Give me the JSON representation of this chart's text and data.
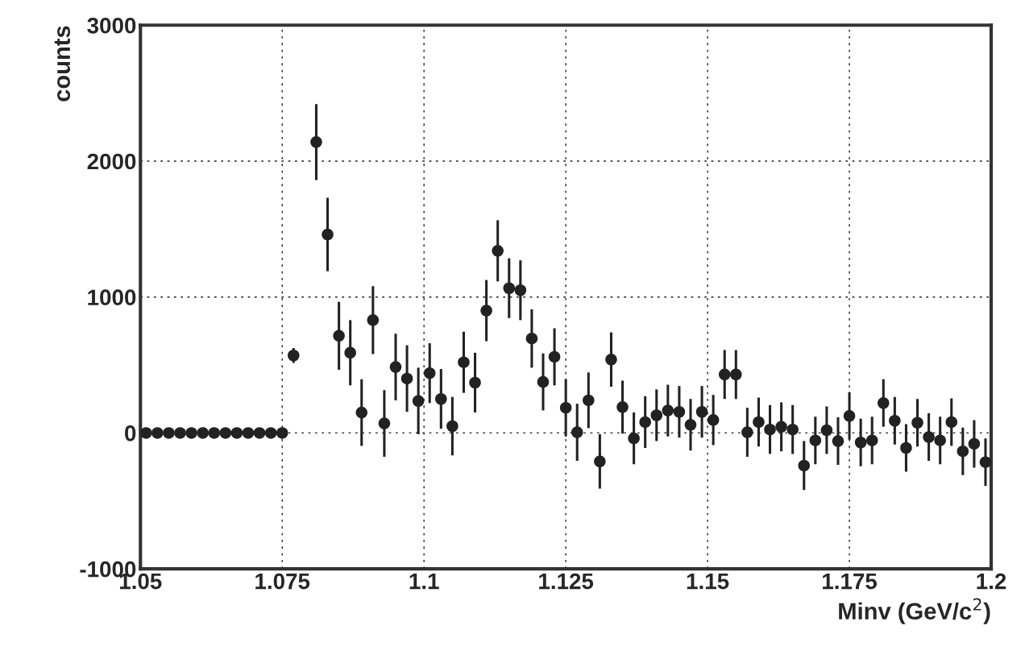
{
  "chart_data": {
    "type": "scatter",
    "xlabel": "Minv (GeV/c$^{2}$)",
    "ylabel": "counts",
    "x": [
      1.051,
      1.053,
      1.055,
      1.057,
      1.059,
      1.061,
      1.063,
      1.065,
      1.067,
      1.069,
      1.071,
      1.073,
      1.075,
      1.077,
      1.081,
      1.083,
      1.085,
      1.087,
      1.089,
      1.091,
      1.093,
      1.095,
      1.097,
      1.099,
      1.101,
      1.103,
      1.105,
      1.107,
      1.109,
      1.111,
      1.113,
      1.115,
      1.117,
      1.119,
      1.121,
      1.123,
      1.125,
      1.127,
      1.129,
      1.131,
      1.133,
      1.135,
      1.137,
      1.139,
      1.141,
      1.143,
      1.145,
      1.147,
      1.149,
      1.151,
      1.153,
      1.155,
      1.157,
      1.159,
      1.161,
      1.163,
      1.165,
      1.167,
      1.169,
      1.171,
      1.173,
      1.175,
      1.177,
      1.179,
      1.181,
      1.183,
      1.185,
      1.187,
      1.189,
      1.191,
      1.193,
      1.195,
      1.197,
      1.199
    ],
    "series": [
      {
        "color": "#222222",
        "values": [
          0,
          0,
          0,
          0,
          0,
          0,
          0,
          0,
          0,
          0,
          0,
          0,
          0,
          570,
          2140,
          1460,
          715,
          590,
          150,
          830,
          70,
          485,
          400,
          235,
          440,
          250,
          50,
          520,
          370,
          900,
          1340,
          1065,
          1050,
          695,
          375,
          560,
          185,
          5,
          240,
          -210,
          540,
          190,
          -40,
          80,
          130,
          165,
          155,
          60,
          155,
          95,
          430,
          430,
          5,
          80,
          25,
          45,
          25,
          -240,
          -55,
          20,
          -60,
          125,
          -70,
          -55,
          220,
          90,
          -110,
          75,
          -30,
          -55,
          80,
          -135,
          -80,
          -215
        ],
        "errors": [
          null,
          null,
          null,
          null,
          null,
          null,
          null,
          null,
          null,
          null,
          null,
          null,
          null,
          55,
          280,
          270,
          250,
          240,
          245,
          250,
          245,
          245,
          245,
          245,
          220,
          220,
          215,
          225,
          220,
          225,
          225,
          220,
          220,
          215,
          210,
          210,
          210,
          210,
          205,
          200,
          200,
          195,
          190,
          190,
          190,
          190,
          190,
          190,
          190,
          185,
          180,
          180,
          180,
          180,
          180,
          180,
          180,
          180,
          175,
          175,
          175,
          175,
          175,
          175,
          175,
          175,
          175,
          175,
          175,
          175,
          175,
          175,
          175,
          175
        ]
      }
    ],
    "xlim": [
      1.05,
      1.2
    ],
    "ylim": [
      -1000,
      3000
    ],
    "xticks": [
      1.05,
      1.075,
      1.1,
      1.125,
      1.15,
      1.175,
      1.2
    ],
    "yticks": [
      -1000,
      0,
      1000,
      2000,
      3000
    ],
    "grid": true,
    "marker": "circle"
  }
}
